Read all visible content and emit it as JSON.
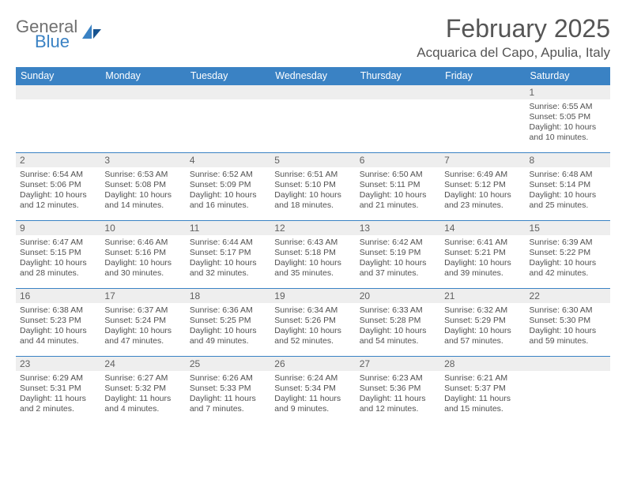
{
  "logo": {
    "part1": "General",
    "part2": "Blue"
  },
  "title": "February 2025",
  "location": "Acquarica del Capo, Apulia, Italy",
  "colors": {
    "header_bg": "#3a82c4",
    "header_text": "#ffffff",
    "daynum_bg": "#eeeeee",
    "text": "#505050",
    "border": "#3a82c4",
    "logo_gray": "#707070",
    "logo_blue": "#3a82c4",
    "page_bg": "#ffffff"
  },
  "typography": {
    "title_fontsize": 32,
    "location_fontsize": 17,
    "header_fontsize": 12.5,
    "daynum_fontsize": 12,
    "body_fontsize": 10.5
  },
  "day_headers": [
    "Sunday",
    "Monday",
    "Tuesday",
    "Wednesday",
    "Thursday",
    "Friday",
    "Saturday"
  ],
  "weeks": [
    [
      null,
      null,
      null,
      null,
      null,
      null,
      {
        "n": "1",
        "sr": "Sunrise: 6:55 AM",
        "ss": "Sunset: 5:05 PM",
        "dl": "Daylight: 10 hours and 10 minutes."
      }
    ],
    [
      {
        "n": "2",
        "sr": "Sunrise: 6:54 AM",
        "ss": "Sunset: 5:06 PM",
        "dl": "Daylight: 10 hours and 12 minutes."
      },
      {
        "n": "3",
        "sr": "Sunrise: 6:53 AM",
        "ss": "Sunset: 5:08 PM",
        "dl": "Daylight: 10 hours and 14 minutes."
      },
      {
        "n": "4",
        "sr": "Sunrise: 6:52 AM",
        "ss": "Sunset: 5:09 PM",
        "dl": "Daylight: 10 hours and 16 minutes."
      },
      {
        "n": "5",
        "sr": "Sunrise: 6:51 AM",
        "ss": "Sunset: 5:10 PM",
        "dl": "Daylight: 10 hours and 18 minutes."
      },
      {
        "n": "6",
        "sr": "Sunrise: 6:50 AM",
        "ss": "Sunset: 5:11 PM",
        "dl": "Daylight: 10 hours and 21 minutes."
      },
      {
        "n": "7",
        "sr": "Sunrise: 6:49 AM",
        "ss": "Sunset: 5:12 PM",
        "dl": "Daylight: 10 hours and 23 minutes."
      },
      {
        "n": "8",
        "sr": "Sunrise: 6:48 AM",
        "ss": "Sunset: 5:14 PM",
        "dl": "Daylight: 10 hours and 25 minutes."
      }
    ],
    [
      {
        "n": "9",
        "sr": "Sunrise: 6:47 AM",
        "ss": "Sunset: 5:15 PM",
        "dl": "Daylight: 10 hours and 28 minutes."
      },
      {
        "n": "10",
        "sr": "Sunrise: 6:46 AM",
        "ss": "Sunset: 5:16 PM",
        "dl": "Daylight: 10 hours and 30 minutes."
      },
      {
        "n": "11",
        "sr": "Sunrise: 6:44 AM",
        "ss": "Sunset: 5:17 PM",
        "dl": "Daylight: 10 hours and 32 minutes."
      },
      {
        "n": "12",
        "sr": "Sunrise: 6:43 AM",
        "ss": "Sunset: 5:18 PM",
        "dl": "Daylight: 10 hours and 35 minutes."
      },
      {
        "n": "13",
        "sr": "Sunrise: 6:42 AM",
        "ss": "Sunset: 5:19 PM",
        "dl": "Daylight: 10 hours and 37 minutes."
      },
      {
        "n": "14",
        "sr": "Sunrise: 6:41 AM",
        "ss": "Sunset: 5:21 PM",
        "dl": "Daylight: 10 hours and 39 minutes."
      },
      {
        "n": "15",
        "sr": "Sunrise: 6:39 AM",
        "ss": "Sunset: 5:22 PM",
        "dl": "Daylight: 10 hours and 42 minutes."
      }
    ],
    [
      {
        "n": "16",
        "sr": "Sunrise: 6:38 AM",
        "ss": "Sunset: 5:23 PM",
        "dl": "Daylight: 10 hours and 44 minutes."
      },
      {
        "n": "17",
        "sr": "Sunrise: 6:37 AM",
        "ss": "Sunset: 5:24 PM",
        "dl": "Daylight: 10 hours and 47 minutes."
      },
      {
        "n": "18",
        "sr": "Sunrise: 6:36 AM",
        "ss": "Sunset: 5:25 PM",
        "dl": "Daylight: 10 hours and 49 minutes."
      },
      {
        "n": "19",
        "sr": "Sunrise: 6:34 AM",
        "ss": "Sunset: 5:26 PM",
        "dl": "Daylight: 10 hours and 52 minutes."
      },
      {
        "n": "20",
        "sr": "Sunrise: 6:33 AM",
        "ss": "Sunset: 5:28 PM",
        "dl": "Daylight: 10 hours and 54 minutes."
      },
      {
        "n": "21",
        "sr": "Sunrise: 6:32 AM",
        "ss": "Sunset: 5:29 PM",
        "dl": "Daylight: 10 hours and 57 minutes."
      },
      {
        "n": "22",
        "sr": "Sunrise: 6:30 AM",
        "ss": "Sunset: 5:30 PM",
        "dl": "Daylight: 10 hours and 59 minutes."
      }
    ],
    [
      {
        "n": "23",
        "sr": "Sunrise: 6:29 AM",
        "ss": "Sunset: 5:31 PM",
        "dl": "Daylight: 11 hours and 2 minutes."
      },
      {
        "n": "24",
        "sr": "Sunrise: 6:27 AM",
        "ss": "Sunset: 5:32 PM",
        "dl": "Daylight: 11 hours and 4 minutes."
      },
      {
        "n": "25",
        "sr": "Sunrise: 6:26 AM",
        "ss": "Sunset: 5:33 PM",
        "dl": "Daylight: 11 hours and 7 minutes."
      },
      {
        "n": "26",
        "sr": "Sunrise: 6:24 AM",
        "ss": "Sunset: 5:34 PM",
        "dl": "Daylight: 11 hours and 9 minutes."
      },
      {
        "n": "27",
        "sr": "Sunrise: 6:23 AM",
        "ss": "Sunset: 5:36 PM",
        "dl": "Daylight: 11 hours and 12 minutes."
      },
      {
        "n": "28",
        "sr": "Sunrise: 6:21 AM",
        "ss": "Sunset: 5:37 PM",
        "dl": "Daylight: 11 hours and 15 minutes."
      },
      null
    ]
  ]
}
